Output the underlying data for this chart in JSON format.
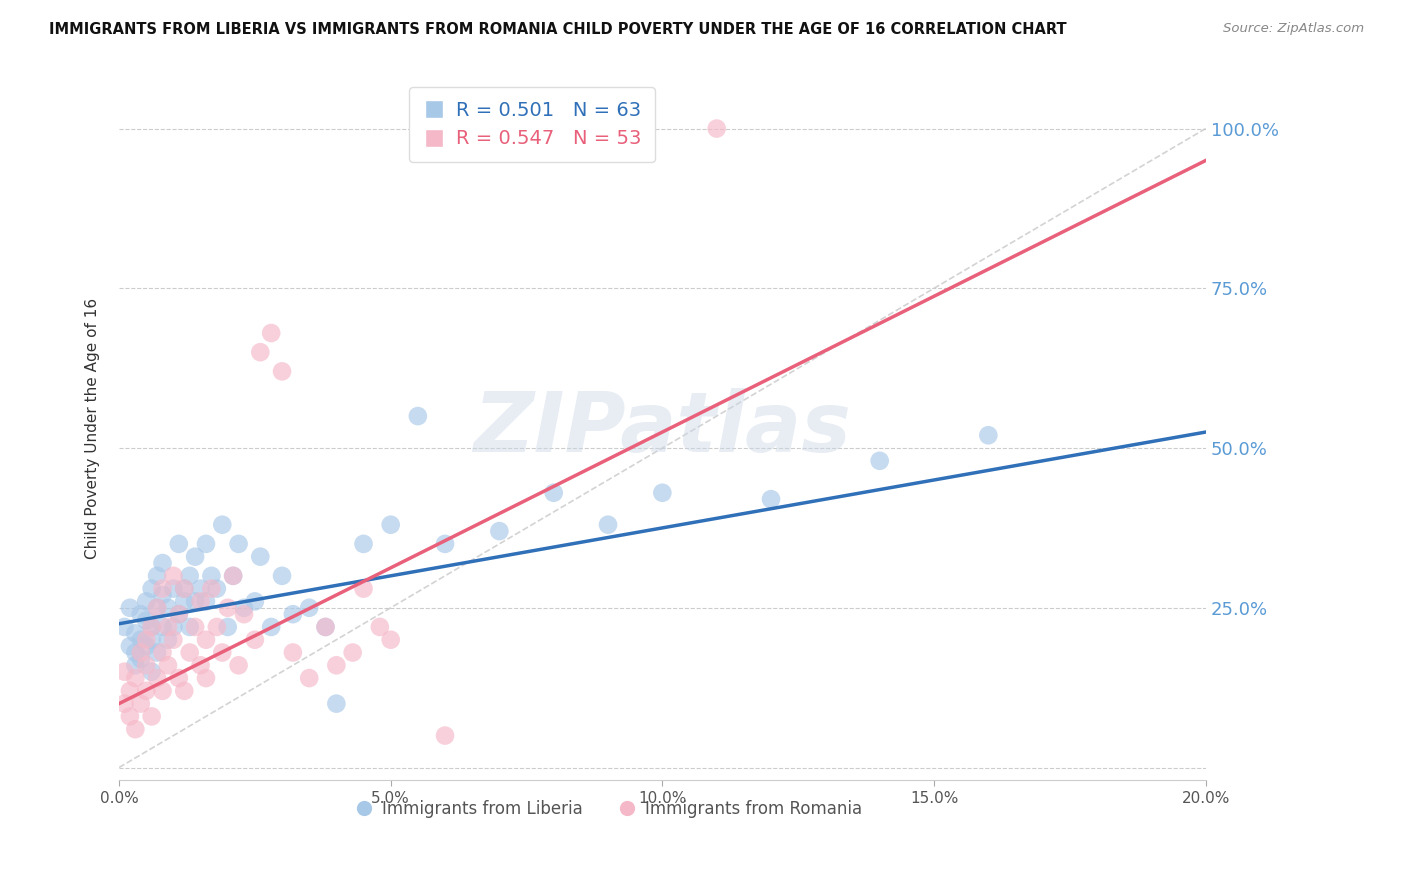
{
  "title": "IMMIGRANTS FROM LIBERIA VS IMMIGRANTS FROM ROMANIA CHILD POVERTY UNDER THE AGE OF 16 CORRELATION CHART",
  "source": "Source: ZipAtlas.com",
  "ylabel": "Child Poverty Under the Age of 16",
  "xlabel": "",
  "xlim": [
    0.0,
    0.2
  ],
  "ylim": [
    -0.02,
    1.08
  ],
  "yticks": [
    0.0,
    0.25,
    0.5,
    0.75,
    1.0
  ],
  "ytick_labels": [
    "",
    "25.0%",
    "50.0%",
    "75.0%",
    "100.0%"
  ],
  "xticks": [
    0.0,
    0.05,
    0.1,
    0.15,
    0.2
  ],
  "xtick_labels": [
    "0.0%",
    "5.0%",
    "10.0%",
    "15.0%",
    "20.0%"
  ],
  "blue_color": "#a8c8e8",
  "pink_color": "#f5b8c8",
  "blue_line_color": "#3070b8",
  "pink_line_color": "#e8607a",
  "ref_line_color": "#c8c8c8",
  "watermark": "ZIPatlas",
  "legend_R_blue": "R = 0.501",
  "legend_N_blue": "N = 63",
  "legend_R_pink": "R = 0.547",
  "legend_N_pink": "N = 53",
  "legend_label_blue": "Immigrants from Liberia",
  "legend_label_pink": "Immigrants from Romania",
  "blue_x": [
    0.001,
    0.002,
    0.002,
    0.003,
    0.003,
    0.003,
    0.004,
    0.004,
    0.004,
    0.005,
    0.005,
    0.005,
    0.006,
    0.006,
    0.006,
    0.006,
    0.007,
    0.007,
    0.007,
    0.008,
    0.008,
    0.008,
    0.009,
    0.009,
    0.01,
    0.01,
    0.011,
    0.011,
    0.012,
    0.012,
    0.013,
    0.013,
    0.014,
    0.014,
    0.015,
    0.016,
    0.016,
    0.017,
    0.018,
    0.019,
    0.02,
    0.021,
    0.022,
    0.023,
    0.025,
    0.026,
    0.028,
    0.03,
    0.032,
    0.035,
    0.038,
    0.04,
    0.045,
    0.05,
    0.055,
    0.06,
    0.07,
    0.08,
    0.09,
    0.1,
    0.12,
    0.14,
    0.16
  ],
  "blue_y": [
    0.22,
    0.19,
    0.25,
    0.18,
    0.21,
    0.16,
    0.24,
    0.2,
    0.17,
    0.26,
    0.23,
    0.19,
    0.22,
    0.28,
    0.2,
    0.15,
    0.3,
    0.25,
    0.18,
    0.32,
    0.27,
    0.22,
    0.25,
    0.2,
    0.28,
    0.22,
    0.35,
    0.24,
    0.28,
    0.26,
    0.3,
    0.22,
    0.26,
    0.33,
    0.28,
    0.35,
    0.26,
    0.3,
    0.28,
    0.38,
    0.22,
    0.3,
    0.35,
    0.25,
    0.26,
    0.33,
    0.22,
    0.3,
    0.24,
    0.25,
    0.22,
    0.1,
    0.35,
    0.38,
    0.55,
    0.35,
    0.37,
    0.43,
    0.38,
    0.43,
    0.42,
    0.48,
    0.52
  ],
  "pink_x": [
    0.001,
    0.001,
    0.002,
    0.002,
    0.003,
    0.003,
    0.004,
    0.004,
    0.005,
    0.005,
    0.005,
    0.006,
    0.006,
    0.007,
    0.007,
    0.008,
    0.008,
    0.008,
    0.009,
    0.009,
    0.01,
    0.01,
    0.011,
    0.011,
    0.012,
    0.012,
    0.013,
    0.014,
    0.015,
    0.015,
    0.016,
    0.016,
    0.017,
    0.018,
    0.019,
    0.02,
    0.021,
    0.022,
    0.023,
    0.025,
    0.026,
    0.028,
    0.03,
    0.032,
    0.035,
    0.038,
    0.04,
    0.043,
    0.045,
    0.048,
    0.05,
    0.06,
    0.11
  ],
  "pink_y": [
    0.15,
    0.1,
    0.12,
    0.08,
    0.06,
    0.14,
    0.1,
    0.18,
    0.16,
    0.2,
    0.12,
    0.08,
    0.22,
    0.14,
    0.25,
    0.18,
    0.12,
    0.28,
    0.16,
    0.22,
    0.2,
    0.3,
    0.14,
    0.24,
    0.12,
    0.28,
    0.18,
    0.22,
    0.16,
    0.26,
    0.2,
    0.14,
    0.28,
    0.22,
    0.18,
    0.25,
    0.3,
    0.16,
    0.24,
    0.2,
    0.65,
    0.68,
    0.62,
    0.18,
    0.14,
    0.22,
    0.16,
    0.18,
    0.28,
    0.22,
    0.2,
    0.05,
    1.0
  ],
  "blue_trend_x": [
    0.0,
    0.2
  ],
  "blue_trend_y": [
    0.225,
    0.525
  ],
  "pink_trend_x": [
    0.0,
    0.2
  ],
  "pink_trend_y": [
    0.1,
    0.95
  ],
  "ref_line_x": [
    0.0,
    0.2
  ],
  "ref_line_y": [
    0.0,
    1.0
  ]
}
